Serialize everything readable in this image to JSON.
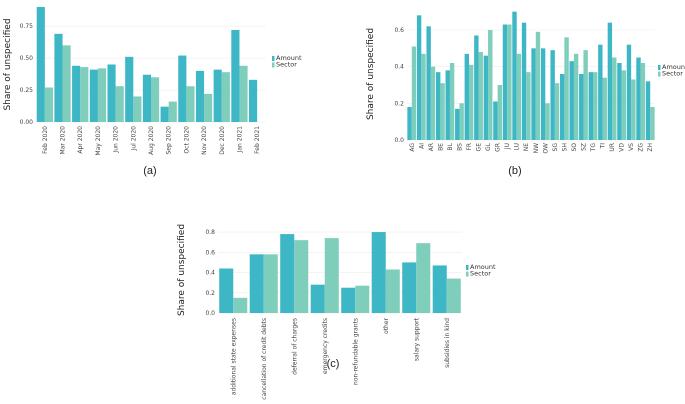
{
  "colors": {
    "amount": "#3db6c6",
    "sector": "#7fcdbb"
  },
  "chart_data": [
    {
      "type": "bar",
      "panel_label": "(a)",
      "ylabel": "Share of unspecified",
      "ylim": [
        0,
        0.9
      ],
      "yticks": [
        "0.00",
        "0.25",
        "0.50",
        "0.75"
      ],
      "ytick_values": [
        0,
        0.25,
        0.5,
        0.75
      ],
      "legend": [
        "Amount",
        "Sector"
      ],
      "categories": [
        "Feb 2020",
        "Mar 2020",
        "Apr 2020",
        "May 2020",
        "Jun 2020",
        "Jul 2020",
        "Aug 2020",
        "Sep 2020",
        "Oct 2020",
        "Nov 2020",
        "Dec 2020",
        "Jan 2021",
        "Feb 2021"
      ],
      "series": [
        {
          "name": "Amount",
          "values": [
            0.9,
            0.69,
            0.44,
            0.41,
            0.45,
            0.51,
            0.37,
            0.12,
            0.52,
            0.4,
            0.41,
            0.72,
            0.33
          ]
        },
        {
          "name": "Sector",
          "values": [
            0.27,
            0.6,
            0.43,
            0.42,
            0.28,
            0.2,
            0.35,
            0.16,
            0.28,
            0.22,
            0.39,
            0.44,
            null
          ]
        }
      ]
    },
    {
      "type": "bar",
      "panel_label": "(b)",
      "ylabel": "Share of unspecified",
      "ylim": [
        0,
        0.72
      ],
      "yticks": [
        "0.0",
        "0.2",
        "0.4",
        "0.6"
      ],
      "ytick_values": [
        0,
        0.2,
        0.4,
        0.6
      ],
      "legend": [
        "Amount",
        "Sector"
      ],
      "categories": [
        "AG",
        "AI",
        "AR",
        "BE",
        "BL",
        "BS",
        "FR",
        "GE",
        "GL",
        "GR",
        "JU",
        "LU",
        "NE",
        "NW",
        "OW",
        "SG",
        "SH",
        "SO",
        "SZ",
        "TG",
        "TI",
        "UR",
        "VD",
        "VS",
        "ZG",
        "ZH"
      ],
      "series": [
        {
          "name": "Amount",
          "values": [
            0.18,
            0.68,
            0.62,
            0.37,
            0.38,
            0.17,
            0.47,
            0.57,
            0.46,
            0.21,
            0.63,
            0.7,
            0.64,
            0.5,
            0.5,
            0.49,
            0.36,
            0.43,
            0.36,
            0.37,
            0.52,
            0.64,
            0.42,
            0.52,
            0.45,
            0.32
          ]
        },
        {
          "name": "Sector",
          "values": [
            0.51,
            0.47,
            0.4,
            0.31,
            0.42,
            0.2,
            0.41,
            0.48,
            0.6,
            0.3,
            0.63,
            0.47,
            0.37,
            0.59,
            0.2,
            0.31,
            0.56,
            0.47,
            0.49,
            0.37,
            0.34,
            0.45,
            0.38,
            0.33,
            0.42,
            0.18
          ]
        }
      ]
    },
    {
      "type": "bar",
      "panel_label": "(c)",
      "ylabel": "Share of unspecified",
      "ylim": [
        0,
        0.85
      ],
      "yticks": [
        "0.0",
        "0.2",
        "0.4",
        "0.6",
        "0.8"
      ],
      "ytick_values": [
        0,
        0.2,
        0.4,
        0.6,
        0.8
      ],
      "legend": [
        "Amount",
        "Sector"
      ],
      "categories": [
        "additional state expenses",
        "cancellation of credit debts",
        "deferral of charges",
        "emergency credits",
        "non-refundable grants",
        "other",
        "salary support",
        "subsidies in kind"
      ],
      "series": [
        {
          "name": "Amount",
          "values": [
            0.44,
            0.58,
            0.78,
            0.28,
            0.25,
            0.8,
            0.5,
            0.47
          ]
        },
        {
          "name": "Sector",
          "values": [
            0.15,
            0.58,
            0.72,
            0.74,
            0.27,
            0.43,
            0.69,
            0.34
          ]
        }
      ]
    }
  ]
}
